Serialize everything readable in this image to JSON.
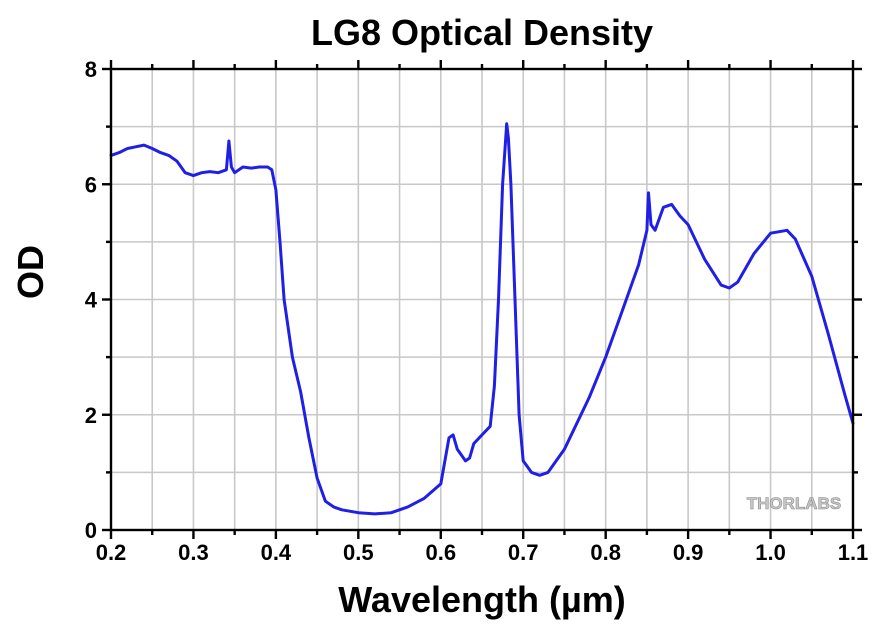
{
  "chart_data": {
    "type": "line",
    "title": "LG8 Optical Density",
    "xlabel": "Wavelength (µm)",
    "ylabel": "OD",
    "xlim": [
      0.2,
      1.1
    ],
    "ylim": [
      0,
      8
    ],
    "x_ticks": [
      "0.2",
      "0.3",
      "0.4",
      "0.5",
      "0.6",
      "0.7",
      "0.8",
      "0.9",
      "1.0",
      "1.1"
    ],
    "x_tick_values": [
      0.2,
      0.3,
      0.4,
      0.5,
      0.6,
      0.7,
      0.8,
      0.9,
      1.0,
      1.1
    ],
    "y_ticks": [
      "0",
      "2",
      "4",
      "6",
      "8"
    ],
    "y_tick_values": [
      0,
      2,
      4,
      6,
      8
    ],
    "x_grid_step": 0.05,
    "y_grid_step": 1,
    "grid": true,
    "series": [
      {
        "name": "LG8",
        "color": "#1f1fe6",
        "x": [
          0.2,
          0.21,
          0.22,
          0.23,
          0.24,
          0.25,
          0.26,
          0.27,
          0.28,
          0.29,
          0.3,
          0.31,
          0.32,
          0.33,
          0.34,
          0.343,
          0.346,
          0.35,
          0.36,
          0.37,
          0.38,
          0.39,
          0.395,
          0.4,
          0.405,
          0.41,
          0.42,
          0.43,
          0.44,
          0.45,
          0.46,
          0.47,
          0.48,
          0.5,
          0.52,
          0.54,
          0.56,
          0.58,
          0.6,
          0.605,
          0.61,
          0.615,
          0.62,
          0.63,
          0.635,
          0.64,
          0.65,
          0.66,
          0.665,
          0.67,
          0.675,
          0.68,
          0.682,
          0.685,
          0.69,
          0.695,
          0.7,
          0.71,
          0.72,
          0.73,
          0.75,
          0.78,
          0.8,
          0.82,
          0.84,
          0.85,
          0.852,
          0.855,
          0.86,
          0.87,
          0.88,
          0.89,
          0.9,
          0.92,
          0.94,
          0.95,
          0.96,
          0.98,
          1.0,
          1.02,
          1.03,
          1.05,
          1.07,
          1.09,
          1.1
        ],
        "y": [
          6.5,
          6.55,
          6.62,
          6.65,
          6.68,
          6.62,
          6.55,
          6.5,
          6.4,
          6.2,
          6.15,
          6.2,
          6.22,
          6.2,
          6.25,
          6.75,
          6.3,
          6.2,
          6.3,
          6.28,
          6.3,
          6.3,
          6.25,
          5.9,
          5.0,
          4.0,
          3.0,
          2.4,
          1.6,
          0.9,
          0.5,
          0.4,
          0.35,
          0.3,
          0.28,
          0.3,
          0.4,
          0.55,
          0.8,
          1.2,
          1.6,
          1.65,
          1.4,
          1.2,
          1.25,
          1.5,
          1.65,
          1.8,
          2.5,
          4.0,
          6.0,
          7.05,
          6.8,
          6.0,
          4.0,
          2.0,
          1.2,
          1.0,
          0.95,
          1.0,
          1.4,
          2.3,
          3.0,
          3.8,
          4.6,
          5.2,
          5.85,
          5.3,
          5.2,
          5.6,
          5.65,
          5.45,
          5.3,
          4.7,
          4.25,
          4.2,
          4.3,
          4.8,
          5.15,
          5.2,
          5.05,
          4.4,
          3.4,
          2.35,
          1.85
        ]
      }
    ],
    "watermark": "THORLABS"
  }
}
